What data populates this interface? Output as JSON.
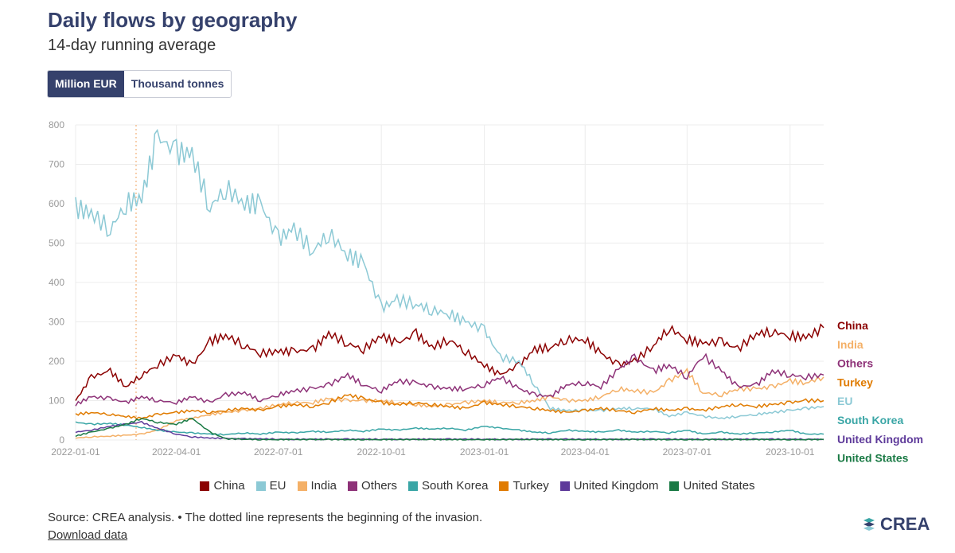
{
  "header": {
    "title": "Daily flows by geography",
    "subtitle": "14-day running average"
  },
  "toggle": {
    "active_label": "Million EUR",
    "inactive_label": "Thousand tonnes"
  },
  "footer": {
    "source": "Source: CREA analysis. • The dotted line represents the beginning of the invasion.",
    "download": "Download data",
    "logo": "CREA"
  },
  "chart_data": {
    "type": "line",
    "title": "Daily flows by geography",
    "subtitle": "14-day running average",
    "ylabel": "Million EUR",
    "ylim": [
      0,
      800
    ],
    "yticks": [
      0,
      100,
      200,
      300,
      400,
      500,
      600,
      700,
      800
    ],
    "xlim": [
      "2022-01-01",
      "2023-10-31"
    ],
    "xticks": [
      "2022-01-01",
      "2022-04-01",
      "2022-07-01",
      "2022-10-01",
      "2023-01-01",
      "2023-04-01",
      "2023-07-01",
      "2023-10-01"
    ],
    "annotation": {
      "date": "2022-02-24",
      "text": "The dotted line represents the beginning of the invasion.",
      "style": "dotted",
      "color": "#f2b179"
    },
    "x": [
      "2022-01-01",
      "2022-01-15",
      "2022-02-01",
      "2022-02-15",
      "2022-03-01",
      "2022-03-15",
      "2022-04-01",
      "2022-04-15",
      "2022-05-01",
      "2022-05-15",
      "2022-06-01",
      "2022-06-15",
      "2022-07-01",
      "2022-07-15",
      "2022-08-01",
      "2022-08-15",
      "2022-09-01",
      "2022-09-15",
      "2022-10-01",
      "2022-10-15",
      "2022-11-01",
      "2022-11-15",
      "2022-12-01",
      "2022-12-15",
      "2023-01-01",
      "2023-01-15",
      "2023-02-01",
      "2023-02-15",
      "2023-03-01",
      "2023-03-15",
      "2023-04-01",
      "2023-04-15",
      "2023-05-01",
      "2023-05-15",
      "2023-06-01",
      "2023-06-15",
      "2023-07-01",
      "2023-07-15",
      "2023-08-01",
      "2023-08-15",
      "2023-09-01",
      "2023-09-15",
      "2023-10-01",
      "2023-10-15",
      "2023-10-31"
    ],
    "series": [
      {
        "name": "China",
        "color": "#8b0000",
        "values": [
          100,
          160,
          175,
          135,
          165,
          190,
          215,
          190,
          250,
          265,
          240,
          220,
          225,
          225,
          230,
          270,
          245,
          230,
          265,
          245,
          270,
          235,
          255,
          225,
          190,
          165,
          190,
          230,
          235,
          255,
          255,
          220,
          190,
          200,
          240,
          285,
          255,
          245,
          250,
          230,
          270,
          275,
          265,
          260,
          285
        ]
      },
      {
        "name": "EU",
        "color": "#8cc9d5",
        "values": [
          590,
          575,
          535,
          600,
          615,
          770,
          730,
          725,
          590,
          640,
          600,
          600,
          510,
          535,
          480,
          525,
          470,
          450,
          335,
          355,
          345,
          330,
          320,
          300,
          280,
          210,
          200,
          140,
          80,
          75,
          75,
          75,
          80,
          80,
          80,
          60,
          70,
          60,
          55,
          60,
          65,
          70,
          75,
          80,
          85
        ]
      },
      {
        "name": "India",
        "color": "#f4b067",
        "values": [
          5,
          8,
          10,
          12,
          15,
          25,
          50,
          55,
          65,
          70,
          75,
          80,
          90,
          95,
          95,
          105,
          100,
          100,
          100,
          95,
          90,
          85,
          90,
          95,
          100,
          95,
          95,
          100,
          110,
          100,
          100,
          110,
          130,
          125,
          120,
          150,
          175,
          120,
          115,
          130,
          130,
          135,
          150,
          145,
          160
        ]
      },
      {
        "name": "Others",
        "color": "#8e3278",
        "values": [
          90,
          110,
          105,
          95,
          110,
          100,
          95,
          110,
          95,
          115,
          120,
          100,
          115,
          125,
          130,
          140,
          165,
          140,
          125,
          150,
          145,
          135,
          130,
          130,
          140,
          160,
          130,
          115,
          110,
          140,
          145,
          135,
          180,
          210,
          175,
          190,
          160,
          215,
          175,
          135,
          140,
          175,
          165,
          160,
          165
        ]
      },
      {
        "name": "South Korea",
        "color": "#3aa6a6",
        "values": [
          45,
          40,
          42,
          38,
          32,
          25,
          20,
          18,
          15,
          14,
          18,
          15,
          20,
          18,
          22,
          20,
          25,
          22,
          28,
          25,
          30,
          28,
          30,
          25,
          35,
          30,
          25,
          20,
          18,
          25,
          22,
          20,
          25,
          20,
          22,
          18,
          25,
          15,
          20,
          15,
          18,
          20,
          25,
          15,
          15
        ]
      },
      {
        "name": "Turkey",
        "color": "#e07b00",
        "values": [
          65,
          70,
          65,
          60,
          55,
          65,
          70,
          75,
          70,
          75,
          80,
          75,
          85,
          90,
          85,
          95,
          115,
          105,
          95,
          90,
          95,
          90,
          85,
          80,
          95,
          90,
          85,
          80,
          75,
          70,
          75,
          80,
          75,
          70,
          80,
          75,
          80,
          75,
          85,
          90,
          85,
          90,
          95,
          100,
          100
        ]
      },
      {
        "name": "United Kingdom",
        "color": "#5e3a9a",
        "values": [
          20,
          25,
          35,
          40,
          45,
          30,
          15,
          8,
          5,
          4,
          3,
          3,
          2,
          2,
          2,
          2,
          2,
          2,
          2,
          2,
          2,
          2,
          2,
          2,
          2,
          2,
          2,
          2,
          2,
          2,
          2,
          2,
          2,
          2,
          2,
          2,
          2,
          2,
          2,
          2,
          2,
          2,
          2,
          2,
          2
        ]
      },
      {
        "name": "United States",
        "color": "#1a7a45",
        "values": [
          10,
          20,
          30,
          40,
          55,
          45,
          40,
          55,
          20,
          3,
          2,
          1,
          1,
          1,
          1,
          1,
          1,
          1,
          1,
          1,
          1,
          1,
          1,
          1,
          1,
          1,
          1,
          1,
          1,
          1,
          1,
          1,
          1,
          1,
          1,
          1,
          1,
          1,
          1,
          1,
          1,
          1,
          1,
          1,
          1
        ]
      }
    ],
    "end_labels": [
      {
        "name": "China",
        "color": "#8b0000"
      },
      {
        "name": "India",
        "color": "#f4b067"
      },
      {
        "name": "Others",
        "color": "#8e3278"
      },
      {
        "name": "Turkey",
        "color": "#e07b00"
      },
      {
        "name": "EU",
        "color": "#8cc9d5"
      },
      {
        "name": "South Korea",
        "color": "#3aa6a6"
      },
      {
        "name": "United Kingdom",
        "color": "#5e3a9a"
      },
      {
        "name": "United States",
        "color": "#1a7a45"
      }
    ],
    "legend_order": [
      "China",
      "EU",
      "India",
      "Others",
      "South Korea",
      "Turkey",
      "United Kingdom",
      "United States"
    ]
  }
}
